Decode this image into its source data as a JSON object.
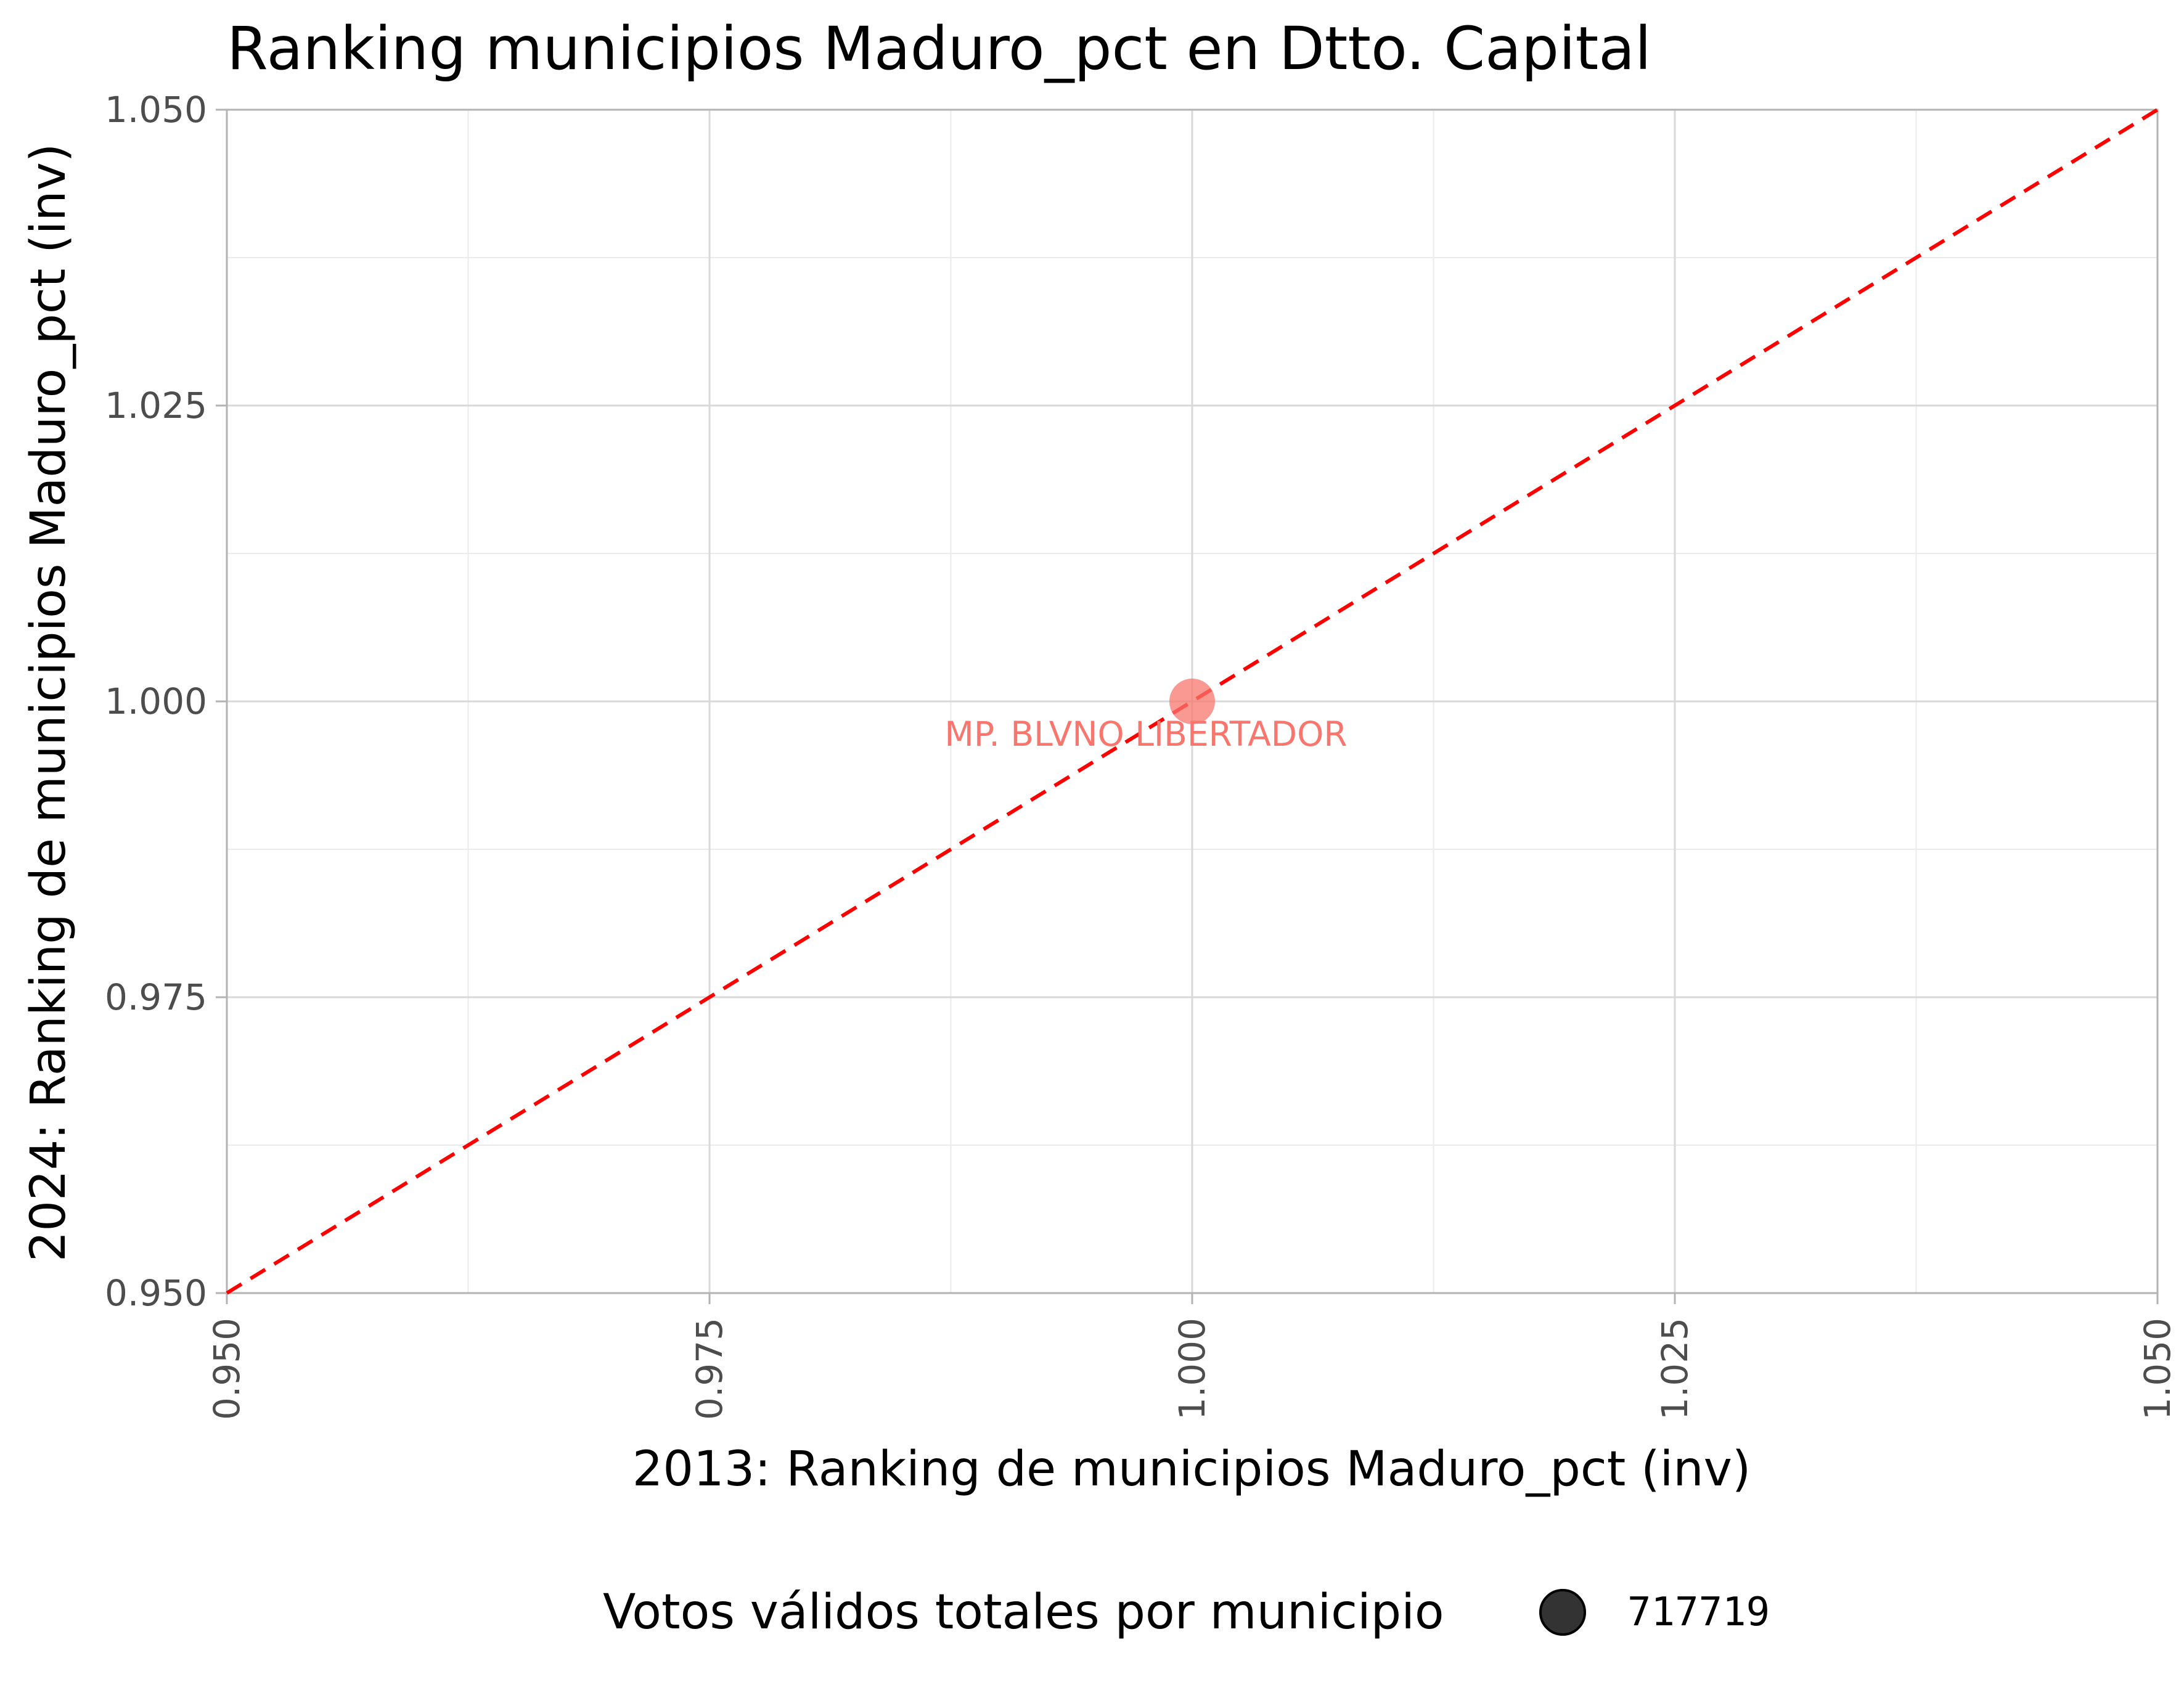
{
  "chart_data": {
    "type": "scatter",
    "title": "Ranking municipios Maduro_pct en Dtto. Capital",
    "xlabel": "2013: Ranking de municipios Maduro_pct (inv)",
    "ylabel": "2024: Ranking de municipios Maduro_pct (inv)",
    "xlim": [
      0.95,
      1.05
    ],
    "ylim": [
      0.95,
      1.05
    ],
    "x_ticks": [
      "0.950",
      "0.975",
      "1.000",
      "1.025",
      "1.050"
    ],
    "y_ticks": [
      "0.950",
      "0.975",
      "1.000",
      "1.025",
      "1.050"
    ],
    "grid": true,
    "reference_line": {
      "type": "y=x",
      "style": "dashed",
      "color": "#ff0000"
    },
    "points": [
      {
        "label": "MP. BLVNO LIBERTADOR",
        "x": 1.0,
        "y": 1.0,
        "size": 717719,
        "color": "#f8766d"
      }
    ],
    "legend": {
      "position": "bottom",
      "title": "Votos válidos totales por municipio",
      "entries": [
        {
          "value": "717719"
        }
      ]
    }
  }
}
